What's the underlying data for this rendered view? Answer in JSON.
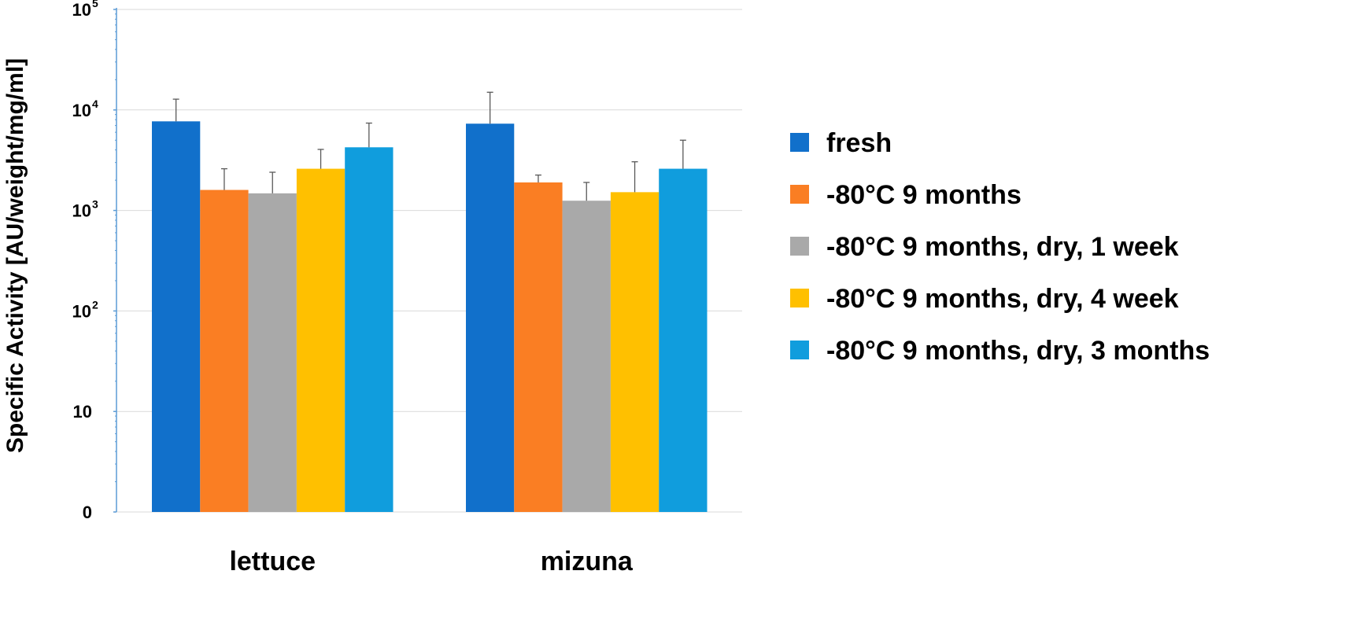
{
  "chart_data": {
    "type": "bar",
    "title": "",
    "xlabel": "",
    "ylabel": "Specific Activity [AU/weight/mg/ml]",
    "y_scale": "log",
    "y_ticks": [
      {
        "value": 1,
        "base": "0",
        "exp": ""
      },
      {
        "value": 10,
        "base": "10",
        "exp": ""
      },
      {
        "value": 100,
        "base": "10",
        "exp": "2"
      },
      {
        "value": 1000,
        "base": "10",
        "exp": "3"
      },
      {
        "value": 10000,
        "base": "10",
        "exp": "4"
      },
      {
        "value": 100000,
        "base": "10",
        "exp": "5"
      }
    ],
    "ylim": [
      1,
      100000
    ],
    "grid": true,
    "legend_position": "right",
    "categories": [
      "lettuce",
      "mizuna"
    ],
    "series": [
      {
        "name": "fresh",
        "color": "#1170CB",
        "values": [
          7700,
          7300
        ],
        "error_upper": [
          12800,
          15000
        ]
      },
      {
        "name": "-80°C 9 months",
        "color": "#FA7E23",
        "values": [
          1600,
          1900
        ],
        "error_upper": [
          2600,
          2250
        ]
      },
      {
        "name": "-80°C 9 months, dry, 1 week",
        "color": "#A9A9A9",
        "values": [
          1480,
          1250
        ],
        "error_upper": [
          2400,
          1900
        ]
      },
      {
        "name": "-80°C 9 months, dry, 4 week",
        "color": "#FFC000",
        "values": [
          2600,
          1520
        ],
        "error_upper": [
          4050,
          3050
        ]
      },
      {
        "name": "-80°C 9 months, dry, 3 months",
        "color": "#109DDD",
        "values": [
          4250,
          2600
        ],
        "error_upper": [
          7400,
          5000
        ]
      }
    ],
    "gridline_color": "#D9D9D9",
    "axis_color": "#5B9BD5",
    "error_bar_color": "#595959"
  }
}
